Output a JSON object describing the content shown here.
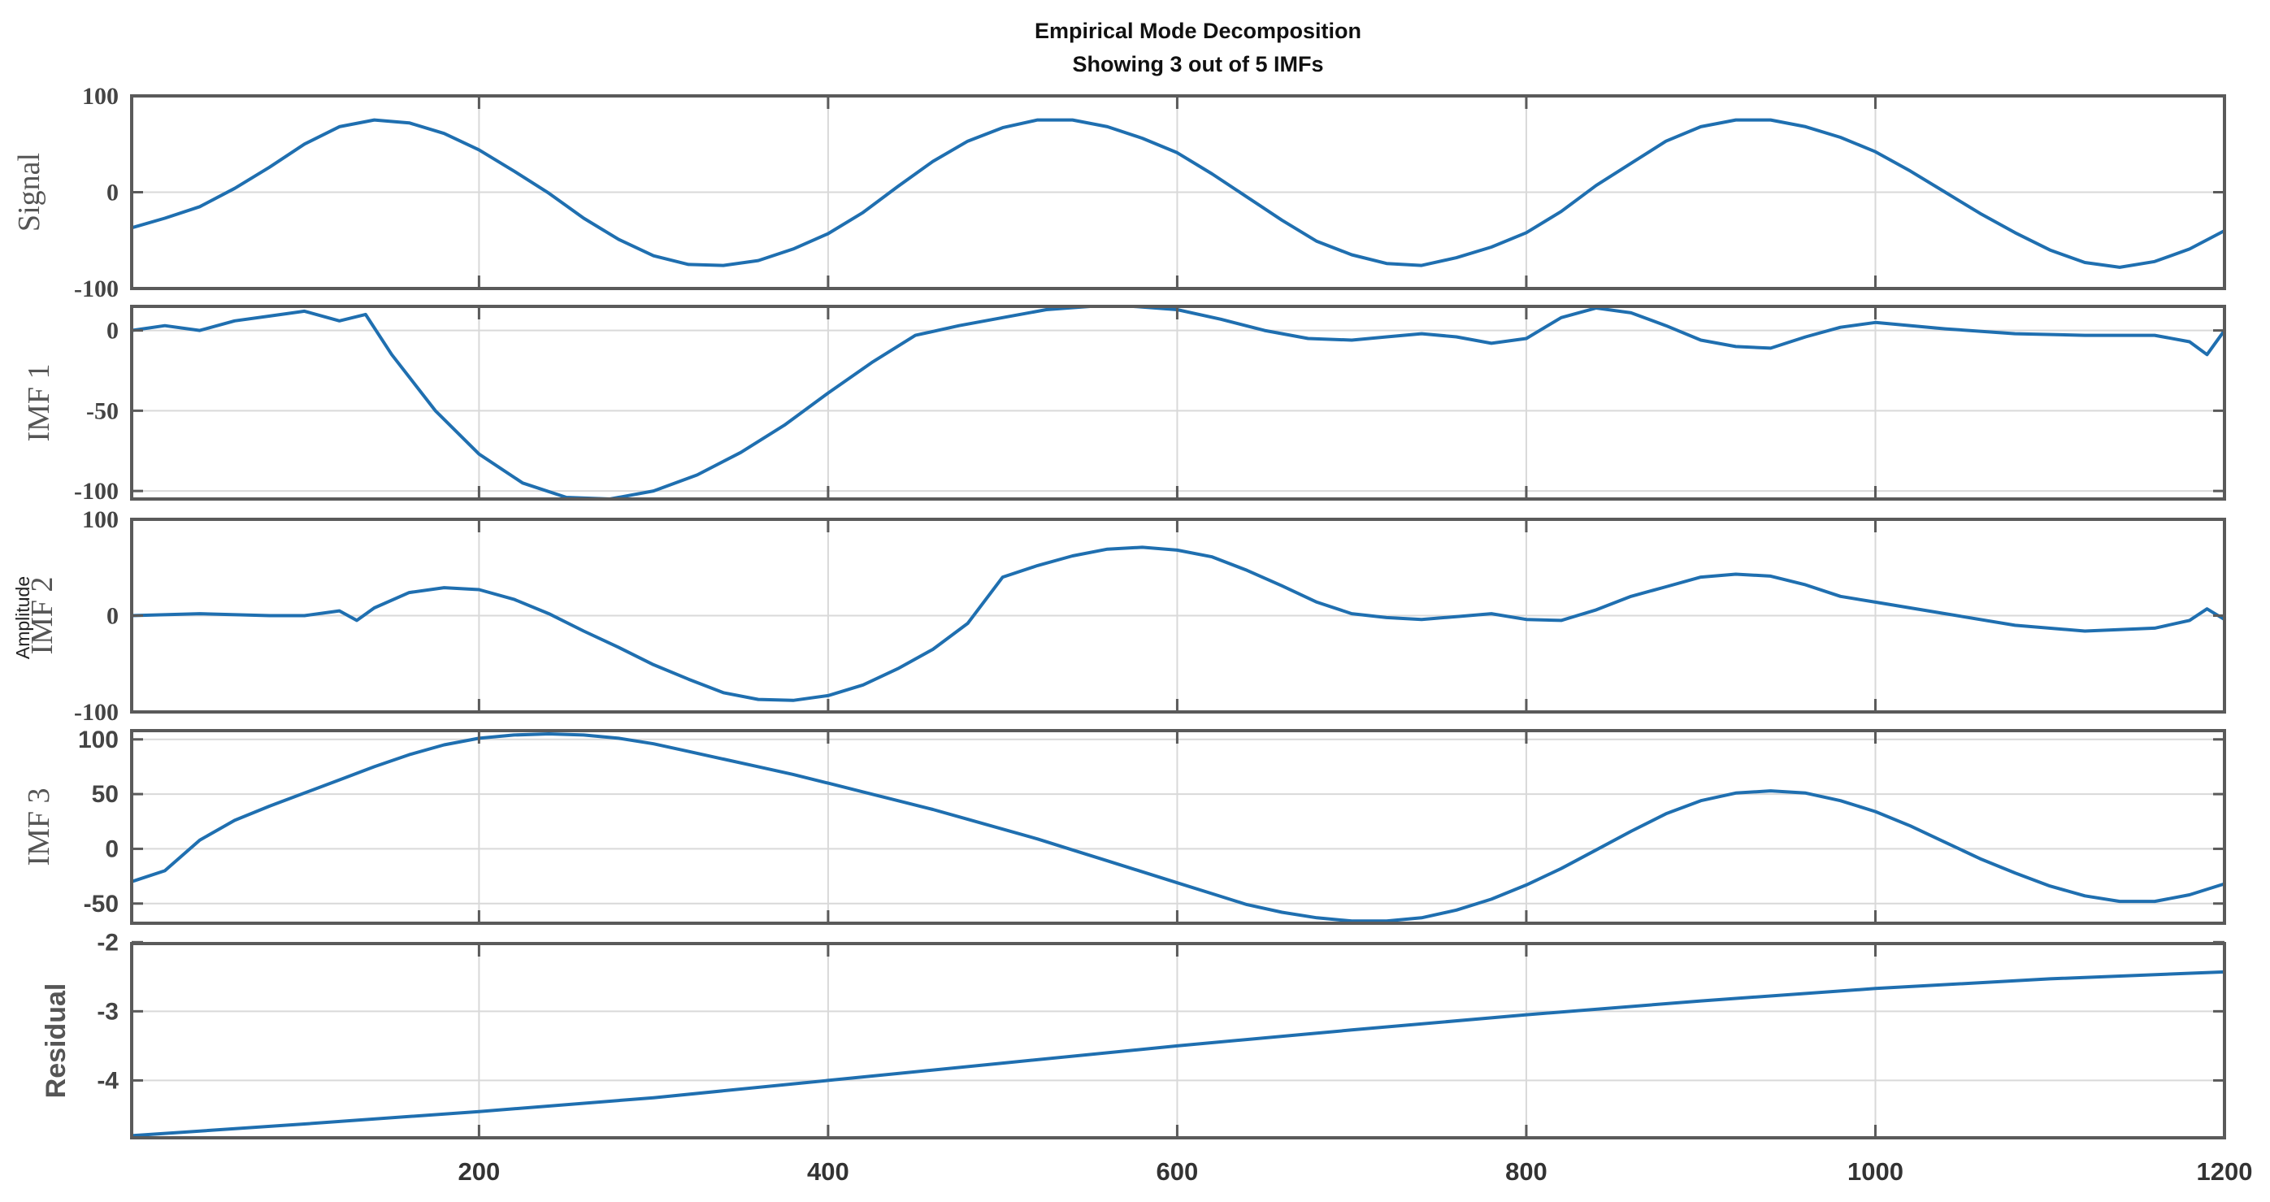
{
  "chart_data": {
    "type": "line",
    "title": "Empirical Mode Decomposition",
    "subtitle": "Showing 3 out of 5 IMFs",
    "ylabel": "Amplitude",
    "line_color": "#1f6fb0",
    "grid": true,
    "xlim": [
      1,
      1200
    ],
    "xticks": [
      200,
      400,
      600,
      800,
      1000,
      1200
    ],
    "xtick_labels": [
      "200",
      "400",
      "600",
      "800",
      "1000",
      "1200"
    ],
    "panels": [
      {
        "name": "Signal",
        "ylabel": "Signal",
        "ylim": [
          -100,
          100
        ],
        "yticks": [
          -100,
          0,
          100
        ],
        "ytick_labels": [
          "-100",
          "0",
          "100"
        ],
        "x": [
          1,
          20,
          40,
          60,
          80,
          100,
          120,
          140,
          160,
          180,
          200,
          220,
          240,
          260,
          280,
          300,
          320,
          340,
          360,
          380,
          400,
          420,
          440,
          460,
          480,
          500,
          520,
          540,
          560,
          580,
          600,
          620,
          640,
          660,
          680,
          700,
          720,
          740,
          760,
          780,
          800,
          820,
          840,
          860,
          880,
          900,
          920,
          940,
          960,
          980,
          1000,
          1020,
          1040,
          1060,
          1080,
          1100,
          1120,
          1140,
          1160,
          1180,
          1200
        ],
        "y": [
          -37,
          -27,
          -15,
          4,
          26,
          50,
          68,
          75,
          72,
          61,
          44,
          22,
          -1,
          -27,
          -49,
          -66,
          -75,
          -76,
          -71,
          -59,
          -43,
          -21,
          6,
          32,
          53,
          67,
          75,
          75,
          68,
          56,
          41,
          19,
          -5,
          -29,
          -51,
          -65,
          -74,
          -76,
          -68,
          -57,
          -42,
          -20,
          7,
          30,
          53,
          68,
          75,
          75,
          68,
          57,
          42,
          22,
          0,
          -22,
          -42,
          -60,
          -73,
          -78,
          -72,
          -59,
          -40
        ]
      },
      {
        "name": "IMF 1",
        "ylabel": "IMF 1",
        "ylim": [
          -105,
          15
        ],
        "yticks": [
          -100,
          -50,
          0
        ],
        "ytick_labels": [
          "-100",
          "-50",
          "0"
        ],
        "x": [
          1,
          20,
          40,
          60,
          80,
          100,
          120,
          135,
          150,
          175,
          200,
          225,
          250,
          275,
          300,
          325,
          350,
          375,
          400,
          425,
          450,
          475,
          500,
          525,
          550,
          575,
          600,
          625,
          650,
          675,
          700,
          720,
          740,
          760,
          780,
          800,
          820,
          840,
          860,
          880,
          900,
          920,
          940,
          960,
          980,
          1000,
          1040,
          1080,
          1120,
          1160,
          1180,
          1190,
          1200
        ],
        "y": [
          0,
          3,
          0,
          6,
          9,
          12,
          6,
          10,
          -15,
          -50,
          -77,
          -95,
          -104,
          -105,
          -100,
          -90,
          -76,
          -59,
          -39,
          -20,
          -3,
          3,
          8,
          13,
          16,
          16,
          13,
          7,
          0,
          -5,
          -6,
          -4,
          -2,
          -4,
          -8,
          -5,
          8,
          14,
          11,
          3,
          -6,
          -10,
          -11,
          -4,
          2,
          5,
          1,
          -2,
          -3,
          -3,
          -7,
          -15,
          0
        ]
      },
      {
        "name": "IMF 2",
        "ylabel": "IMF 2",
        "ylim": [
          -100,
          100
        ],
        "yticks": [
          -100,
          0,
          100
        ],
        "ytick_labels": [
          "-100",
          "0",
          "100"
        ],
        "x": [
          1,
          40,
          80,
          100,
          120,
          130,
          140,
          160,
          180,
          200,
          220,
          240,
          260,
          280,
          300,
          320,
          340,
          360,
          380,
          400,
          420,
          440,
          460,
          480,
          500,
          520,
          540,
          560,
          580,
          600,
          620,
          640,
          660,
          680,
          700,
          720,
          740,
          760,
          780,
          800,
          820,
          840,
          860,
          880,
          900,
          920,
          940,
          960,
          980,
          1000,
          1040,
          1080,
          1120,
          1160,
          1180,
          1190,
          1200
        ],
        "y": [
          0,
          2,
          0,
          0,
          5,
          -5,
          8,
          24,
          29,
          27,
          17,
          2,
          -16,
          -33,
          -51,
          -66,
          -80,
          -87,
          -88,
          -83,
          -72,
          -55,
          -35,
          -8,
          40,
          52,
          62,
          69,
          71,
          68,
          61,
          47,
          31,
          14,
          2,
          -2,
          -4,
          -1,
          2,
          -4,
          -5,
          6,
          20,
          30,
          40,
          43,
          41,
          32,
          20,
          14,
          2,
          -10,
          -16,
          -13,
          -5,
          7,
          -4
        ]
      },
      {
        "name": "IMF 3",
        "ylabel": "IMF 3",
        "ylim": [
          -68,
          108
        ],
        "yticks": [
          -50,
          0,
          50,
          100
        ],
        "ytick_labels": [
          "-50",
          "0",
          "50",
          "100"
        ],
        "x": [
          1,
          20,
          40,
          60,
          80,
          100,
          120,
          140,
          160,
          180,
          200,
          220,
          240,
          260,
          280,
          300,
          320,
          340,
          360,
          380,
          400,
          420,
          440,
          460,
          480,
          500,
          520,
          540,
          560,
          580,
          600,
          620,
          640,
          660,
          680,
          700,
          720,
          740,
          760,
          780,
          800,
          820,
          840,
          860,
          880,
          900,
          920,
          940,
          960,
          980,
          1000,
          1020,
          1040,
          1060,
          1080,
          1100,
          1120,
          1140,
          1160,
          1180,
          1200
        ],
        "y": [
          -30,
          -20,
          8,
          26,
          39,
          51,
          63,
          75,
          86,
          95,
          101,
          104,
          105,
          104,
          101,
          96,
          89,
          82,
          75,
          68,
          60,
          52,
          44,
          36,
          27,
          18,
          9,
          -1,
          -11,
          -21,
          -31,
          -41,
          -51,
          -58,
          -63,
          -66,
          -66,
          -63,
          -56,
          -46,
          -33,
          -18,
          -1,
          16,
          32,
          44,
          51,
          53,
          51,
          44,
          34,
          21,
          6,
          -9,
          -22,
          -34,
          -43,
          -48,
          -48,
          -42,
          -32
        ]
      },
      {
        "name": "Residual",
        "ylabel": "Residual",
        "ylim": [
          -4.83,
          -2.02
        ],
        "yticks": [
          -4,
          -3,
          -2
        ],
        "ytick_labels": [
          "-4",
          "-3",
          "-2"
        ],
        "x": [
          1,
          100,
          200,
          300,
          400,
          500,
          600,
          700,
          800,
          900,
          1000,
          1100,
          1200
        ],
        "y": [
          -4.8,
          -4.63,
          -4.45,
          -4.25,
          -4.0,
          -3.75,
          -3.5,
          -3.27,
          -3.05,
          -2.85,
          -2.67,
          -2.53,
          -2.43
        ]
      }
    ]
  }
}
